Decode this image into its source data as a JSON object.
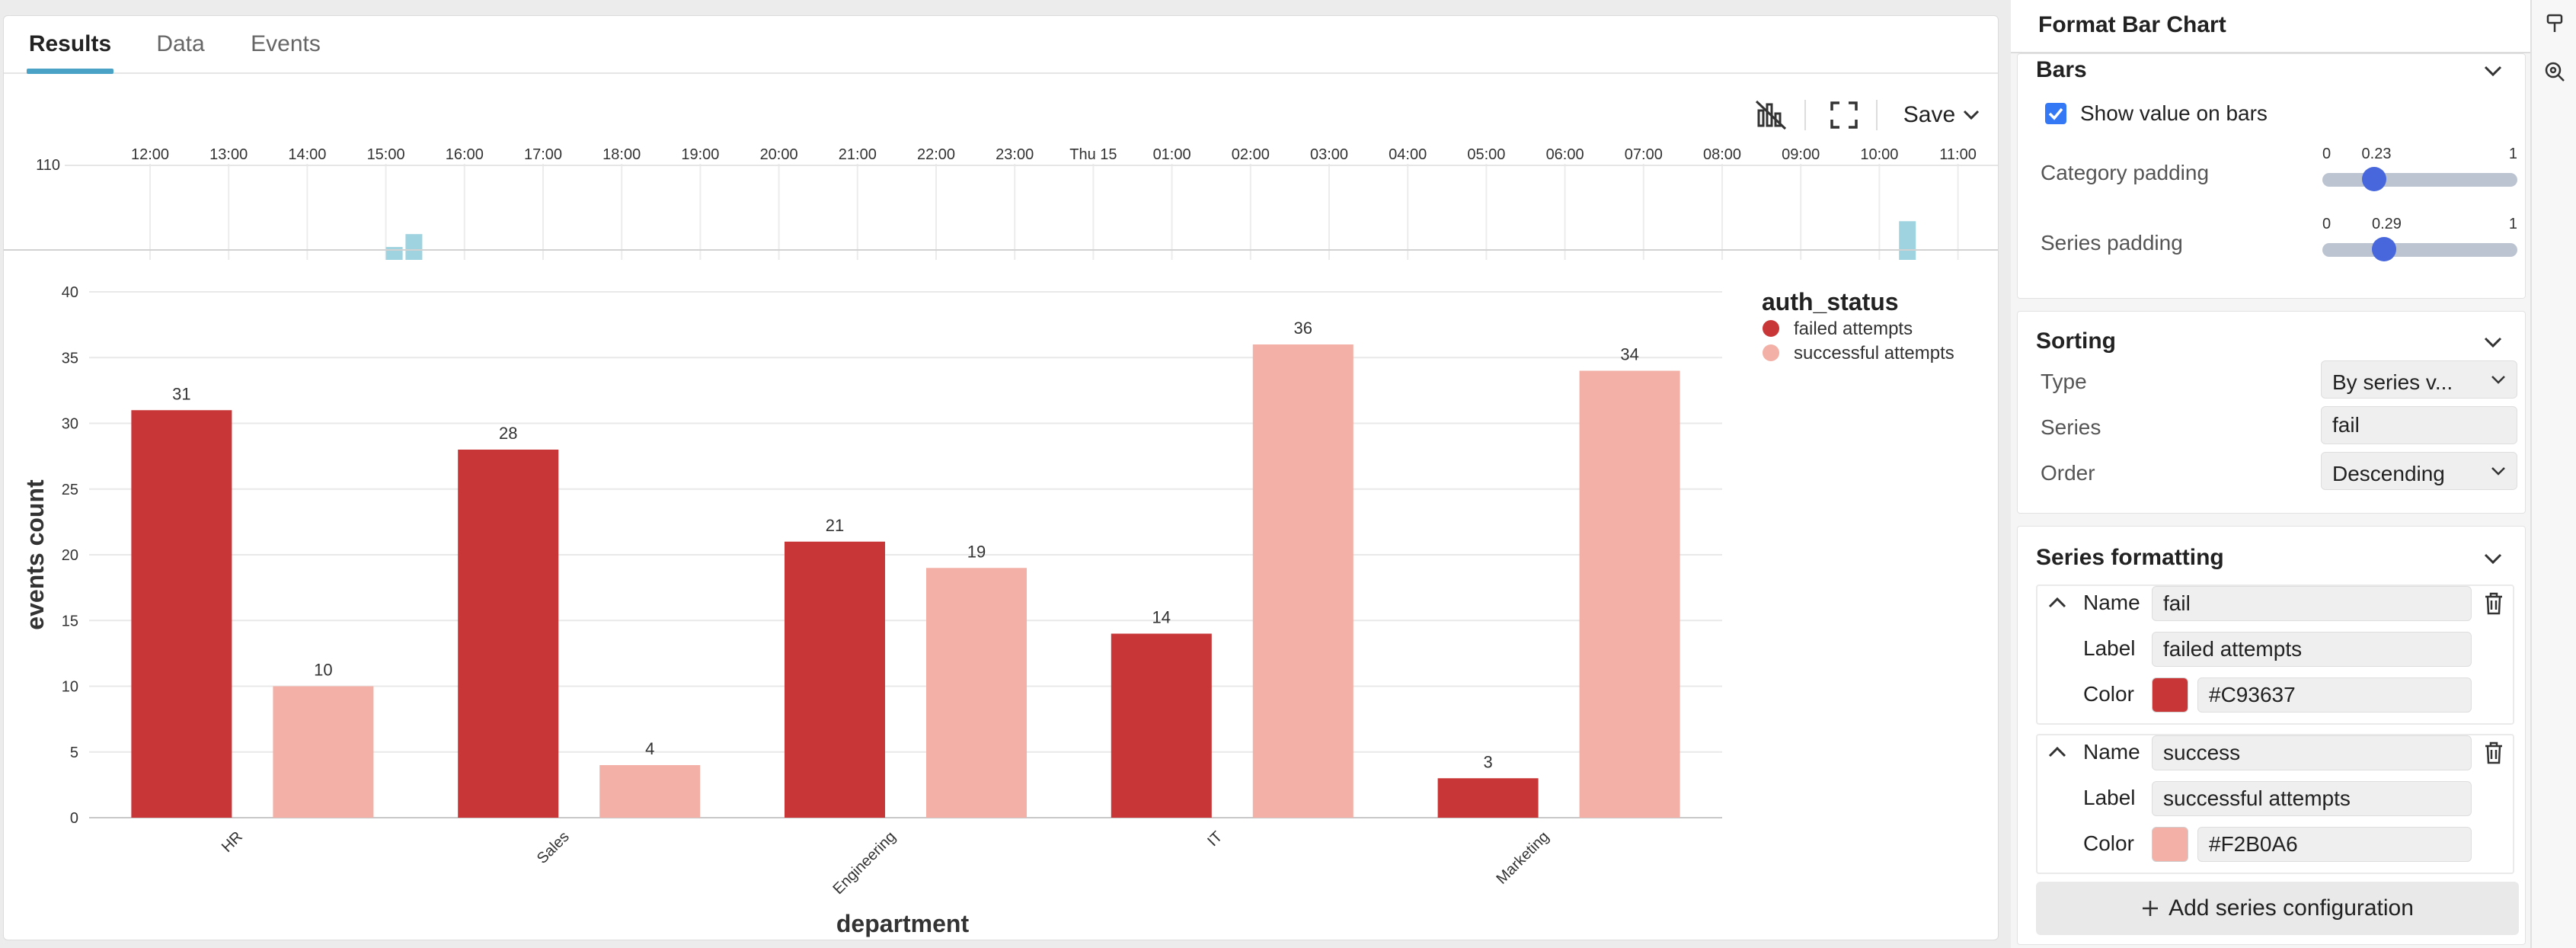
{
  "tabs": [
    {
      "label": "Results",
      "active": true
    },
    {
      "label": "Data",
      "active": false
    },
    {
      "label": "Events",
      "active": false
    }
  ],
  "toolbar": {
    "save_label": "Save"
  },
  "timeline": {
    "y_max_label": "110",
    "ticks": [
      "12:00",
      "13:00",
      "14:00",
      "15:00",
      "16:00",
      "17:00",
      "18:00",
      "19:00",
      "20:00",
      "21:00",
      "22:00",
      "23:00",
      "Thu 15",
      "01:00",
      "02:00",
      "03:00",
      "04:00",
      "05:00",
      "06:00",
      "07:00",
      "08:00",
      "09:00",
      "10:00",
      "11:00"
    ],
    "bars": [
      {
        "hour": 15.0,
        "value": 15
      },
      {
        "hour": 15.25,
        "value": 30
      },
      {
        "hour": 10.25,
        "next_day": true,
        "value": 45
      }
    ],
    "color": "#9fd3e0"
  },
  "chart_data": {
    "type": "bar",
    "title": "",
    "xlabel": "department",
    "ylabel": "events count",
    "ylim": [
      0,
      40
    ],
    "yticks": [
      0,
      5,
      10,
      15,
      20,
      25,
      30,
      35,
      40
    ],
    "categories": [
      "HR",
      "Sales",
      "Engineering",
      "IT",
      "Marketing"
    ],
    "series": [
      {
        "name": "failed attempts",
        "color": "#C93637",
        "values": [
          31,
          28,
          21,
          14,
          3
        ]
      },
      {
        "name": "successful attempts",
        "color": "#F2B0A6",
        "values": [
          10,
          4,
          19,
          36,
          34
        ]
      }
    ],
    "legend": {
      "title": "auth_status",
      "position": "top-right"
    },
    "grid": true,
    "show_values": true
  },
  "panel": {
    "title": "Format Bar Chart",
    "bars": {
      "title": "Bars",
      "show_values_label": "Show value on bars",
      "show_values_checked": true,
      "category_padding": {
        "label": "Category padding",
        "min": "0",
        "max": "1",
        "value": "0.23",
        "fraction": 0.23
      },
      "series_padding": {
        "label": "Series padding",
        "min": "0",
        "max": "1",
        "value": "0.29",
        "fraction": 0.29
      }
    },
    "sorting": {
      "title": "Sorting",
      "type_label": "Type",
      "type_value": "By series v...",
      "series_label": "Series",
      "series_value": "fail",
      "order_label": "Order",
      "order_value": "Descending"
    },
    "series_formatting": {
      "title": "Series formatting",
      "items": [
        {
          "name_label": "Name",
          "name": "fail",
          "label_label": "Label",
          "label": "failed attempts",
          "color_label": "Color",
          "color": "#C93637"
        },
        {
          "name_label": "Name",
          "name": "success",
          "label_label": "Label",
          "label": "successful attempts",
          "color_label": "Color",
          "color": "#F2B0A6"
        }
      ],
      "add_label": "Add series configuration"
    }
  }
}
